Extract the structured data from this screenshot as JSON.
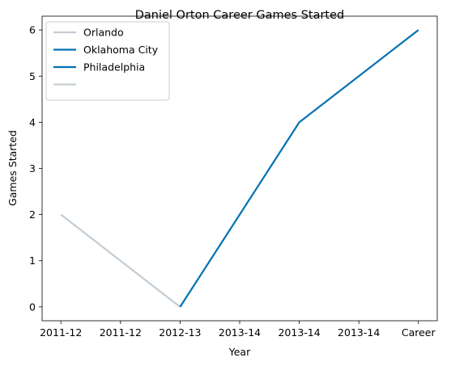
{
  "chart_data": {
    "type": "line",
    "title": "Daniel Orton Career Games Started",
    "xlabel": "Year",
    "ylabel": "Games Started",
    "categories": [
      "2011-12",
      "2011-12",
      "2012-13",
      "2013-14",
      "2013-14",
      "2013-14",
      "Career"
    ],
    "ylim": [
      -0.3,
      6.3
    ],
    "yticks": [
      0,
      1,
      2,
      3,
      4,
      5,
      6
    ],
    "grid": false,
    "legend_position": "top-left",
    "series": [
      {
        "name": "Orlando",
        "color": "#c4cdd4",
        "points": [
          [
            0,
            2
          ],
          [
            2,
            0
          ]
        ]
      },
      {
        "name": "Oklahoma City",
        "color": "#0072b2",
        "points": [
          [
            2,
            0
          ],
          [
            4,
            4
          ]
        ]
      },
      {
        "name": "Philadelphia",
        "color": "#0072b2",
        "points": [
          [
            4,
            4
          ],
          [
            6,
            6
          ]
        ]
      },
      {
        "name": "",
        "color": "#c4cdd4",
        "points": []
      }
    ]
  }
}
